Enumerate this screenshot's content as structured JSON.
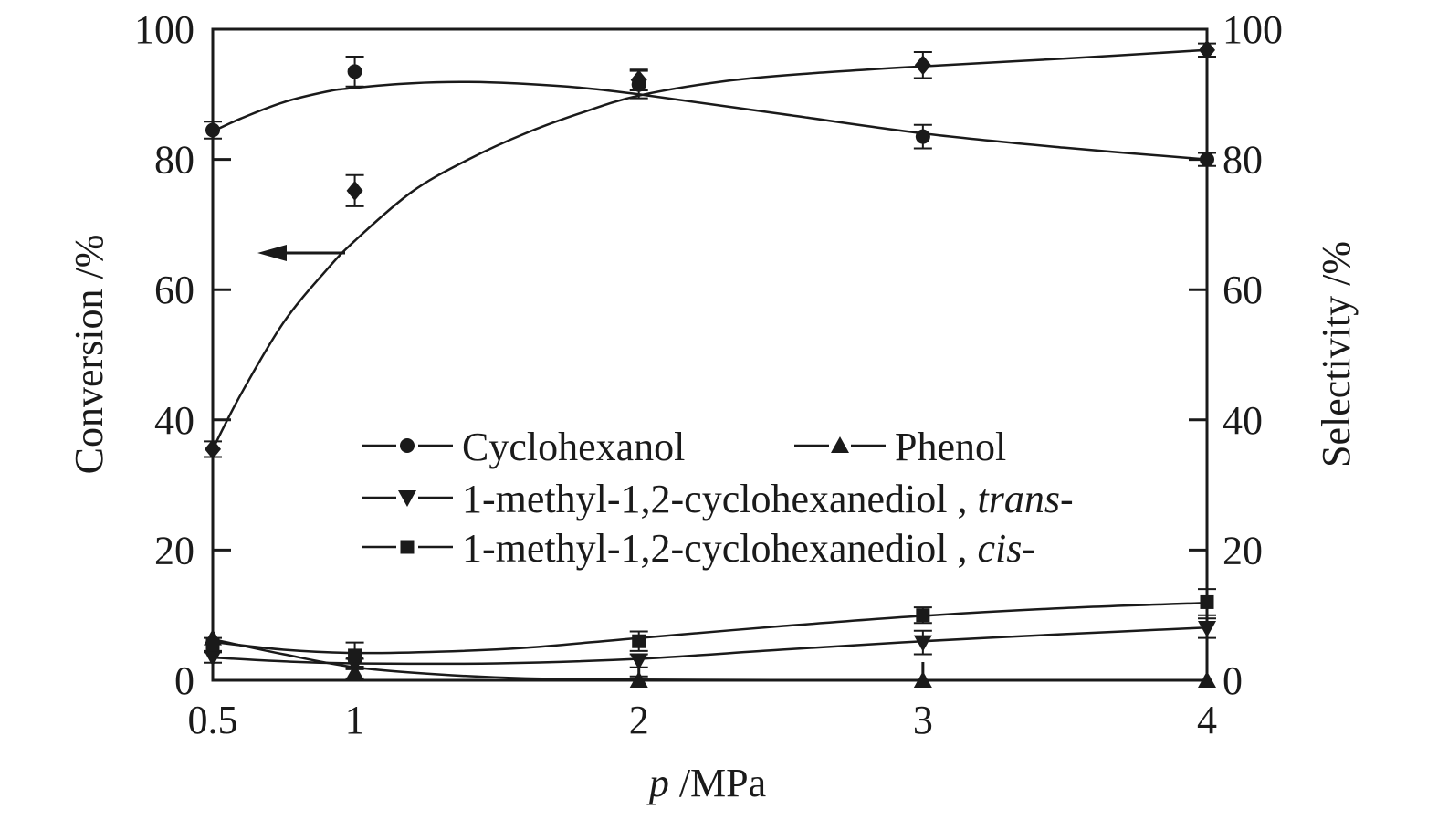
{
  "chart_data": {
    "type": "line",
    "xlabel_var": "p",
    "xlabel_unit": " /MPa",
    "ylabel_left": "Conversion /%",
    "ylabel_right": "Selectivity /%",
    "x_ticks": [
      "0.5",
      "1",
      "2",
      "3",
      "4"
    ],
    "y_ticks": [
      "0",
      "20",
      "40",
      "60",
      "80",
      "100"
    ],
    "xlim": [
      0.5,
      4
    ],
    "ylim": [
      0,
      100
    ],
    "grid": false,
    "legend_placement": "center",
    "series": [
      {
        "axis": "left",
        "marker": "diamond",
        "legend": false,
        "x": [
          0.5,
          1,
          2,
          3,
          4
        ],
        "y": [
          35.5,
          75.2,
          92.2,
          94.5,
          96.8
        ],
        "err": [
          1.2,
          2.4,
          1.6,
          2.0,
          1.0
        ],
        "fit": [
          [
            0.5,
            35.5
          ],
          [
            0.6,
            44
          ],
          [
            0.75,
            55
          ],
          [
            0.9,
            63
          ],
          [
            1,
            67.5
          ],
          [
            1.2,
            75
          ],
          [
            1.4,
            80
          ],
          [
            1.6,
            84
          ],
          [
            1.8,
            87.2
          ],
          [
            2,
            89.8
          ],
          [
            2.3,
            92
          ],
          [
            2.6,
            93.2
          ],
          [
            3,
            94.3
          ],
          [
            3.5,
            95.5
          ],
          [
            4,
            96.8
          ]
        ]
      },
      {
        "name": "Cyclohexanol",
        "axis": "right",
        "marker": "circle",
        "x": [
          0.5,
          1,
          2,
          3,
          4
        ],
        "y": [
          84.5,
          93.5,
          91.5,
          83.5,
          80
        ],
        "err": [
          1.3,
          2.3,
          2.1,
          1.8,
          1.0
        ],
        "fit": [
          [
            0.5,
            84.3
          ],
          [
            0.6,
            86.3
          ],
          [
            0.75,
            88.8
          ],
          [
            0.9,
            90.4
          ],
          [
            1,
            91
          ],
          [
            1.2,
            91.7
          ],
          [
            1.4,
            91.9
          ],
          [
            1.6,
            91.6
          ],
          [
            1.8,
            91
          ],
          [
            2,
            90
          ],
          [
            2.5,
            87
          ],
          [
            3,
            84
          ],
          [
            3.5,
            81.8
          ],
          [
            4,
            80
          ]
        ]
      },
      {
        "name": "Phenol",
        "axis": "right",
        "marker": "triangle-up",
        "x": [
          0.5,
          1,
          2,
          3,
          4
        ],
        "y": [
          6.5,
          1.2,
          0,
          0,
          0
        ],
        "err": [
          0,
          0.9,
          0.6,
          0,
          0
        ],
        "fit": [
          [
            0.5,
            6.3
          ],
          [
            0.75,
            4
          ],
          [
            1,
            2
          ],
          [
            1.3,
            0.9
          ],
          [
            1.6,
            0.3
          ],
          [
            2,
            0.1
          ],
          [
            3,
            0
          ],
          [
            4,
            0
          ]
        ]
      },
      {
        "name": "1-methyl-1,2-cyclohexanediol , ",
        "name_suffix": "trans-",
        "axis": "right",
        "marker": "triangle-down",
        "x": [
          0.5,
          1,
          2,
          3,
          4
        ],
        "y": [
          3.5,
          2.5,
          3,
          5.8,
          8
        ],
        "err": [
          0.8,
          0.8,
          1.0,
          1.8,
          1.5
        ],
        "fit": [
          [
            0.5,
            3.5
          ],
          [
            0.75,
            2.9
          ],
          [
            1,
            2.6
          ],
          [
            1.5,
            2.6
          ],
          [
            2,
            3.3
          ],
          [
            2.5,
            4.7
          ],
          [
            3,
            6
          ],
          [
            3.5,
            7.1
          ],
          [
            4,
            8.1
          ]
        ]
      },
      {
        "name": "1-methyl-1,2-cyclohexanediol , ",
        "name_suffix": "cis-",
        "axis": "right",
        "marker": "square",
        "x": [
          0.5,
          1,
          2,
          3,
          4
        ],
        "y": [
          5.5,
          3.8,
          6,
          10,
          12
        ],
        "err": [
          1.0,
          2.0,
          1.5,
          1.2,
          2.0
        ],
        "fit": [
          [
            0.5,
            5.9
          ],
          [
            0.75,
            4.7
          ],
          [
            1,
            4.2
          ],
          [
            1.3,
            4.4
          ],
          [
            1.6,
            5
          ],
          [
            2,
            6.5
          ],
          [
            2.5,
            8.3
          ],
          [
            3,
            9.9
          ],
          [
            3.5,
            11.1
          ],
          [
            4,
            11.9
          ]
        ]
      }
    ]
  }
}
